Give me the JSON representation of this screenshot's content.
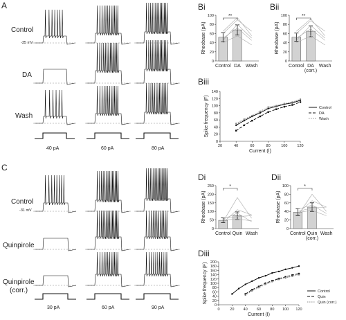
{
  "panels": {
    "A": {
      "label": "A",
      "conditions": [
        "Control",
        "DA",
        "Wash"
      ],
      "voltage": "-35 mV",
      "currents": [
        "40 pA",
        "60 pA",
        "80 pA"
      ]
    },
    "B": {
      "Bi": {
        "label": "Bi",
        "ylabel": "Rheobase (pA)",
        "categories": [
          "Control",
          "DA",
          "Wash"
        ],
        "sig": "**"
      },
      "Bii": {
        "label": "Bii",
        "ylabel": "Rheobase (pA)",
        "categories": [
          "Control",
          "DA\n(corr.)",
          "Wash"
        ],
        "sig": "**"
      },
      "Biii": {
        "label": "Biii",
        "xlabel": "Current (I)",
        "ylabel": "Spike frequency (F)",
        "legend": [
          "Control",
          "DA",
          "Wash"
        ]
      }
    },
    "C": {
      "label": "C",
      "conditions": [
        "Control",
        "Quinpirole",
        "Quinpirole\n(corr.)"
      ],
      "voltage": "-31 mV",
      "currents": [
        "30 pA",
        "60 pA",
        "90 pA"
      ]
    },
    "D": {
      "Di": {
        "label": "Di",
        "ylabel": "Rheobase (pA)",
        "categories": [
          "Control",
          "Quin",
          "Wash"
        ],
        "sig": "*"
      },
      "Dii": {
        "label": "Dii",
        "ylabel": "Rheobase (pA)",
        "categories": [
          "Control",
          "Quin\n(corr.)",
          "Wash"
        ],
        "sig": "*"
      },
      "Diii": {
        "label": "Diii",
        "xlabel": "Current (I)",
        "ylabel": "Spike frequency (F)",
        "legend": [
          "Control",
          "Quin",
          "Quin (corr.)"
        ]
      }
    }
  },
  "chart_data": [
    {
      "id": "Bi",
      "type": "bar",
      "title": "",
      "ylabel": "Rheobase (pA)",
      "xlabel": "",
      "categories": [
        "Control",
        "DA",
        "Wash"
      ],
      "values": [
        52,
        68,
        null
      ],
      "errors": [
        10,
        11,
        null
      ],
      "ylim": [
        0,
        100
      ],
      "yticks": [
        0,
        20,
        40,
        60,
        80,
        100
      ],
      "cells": [
        [
          40,
          55,
          35
        ],
        [
          45,
          80,
          50
        ],
        [
          60,
          90,
          65
        ],
        [
          65,
          95,
          55
        ],
        [
          50,
          72,
          45
        ]
      ]
    },
    {
      "id": "Bii",
      "type": "bar",
      "title": "",
      "ylabel": "Rheobase (pA)",
      "xlabel": "",
      "categories": [
        "Control",
        "DA\n(corr.)",
        "Wash"
      ],
      "values": [
        52,
        65,
        null
      ],
      "errors": [
        9,
        12,
        null
      ],
      "ylim": [
        0,
        100
      ],
      "yticks": [
        0,
        20,
        40,
        60,
        80,
        100
      ],
      "cells": [
        [
          40,
          55,
          35
        ],
        [
          45,
          78,
          50
        ],
        [
          60,
          88,
          65
        ],
        [
          65,
          92,
          55
        ],
        [
          50,
          70,
          45
        ]
      ]
    },
    {
      "id": "Biii",
      "type": "line",
      "title": "",
      "xlabel": "Current (I)",
      "ylabel": "Spike frequency (F)",
      "x": [
        40,
        50,
        60,
        70,
        80,
        90,
        100,
        110,
        120
      ],
      "xlim": [
        20,
        120
      ],
      "xticks": [
        20,
        40,
        60,
        80,
        100,
        120
      ],
      "ylim": [
        0,
        140
      ],
      "yticks": [
        0,
        20,
        40,
        60,
        80,
        100,
        120,
        140
      ],
      "series": [
        {
          "name": "Control",
          "values": [
            45,
            58,
            70,
            80,
            92,
            98,
            104,
            108,
            115
          ],
          "style": "solid"
        },
        {
          "name": "DA",
          "values": [
            30,
            45,
            58,
            70,
            82,
            90,
            97,
            102,
            110
          ],
          "style": "dashed"
        },
        {
          "name": "Wash",
          "values": [
            50,
            62,
            72,
            84,
            96,
            100,
            106,
            110,
            118
          ],
          "style": "dotted"
        }
      ]
    },
    {
      "id": "Di",
      "type": "bar",
      "title": "",
      "ylabel": "Rheobase (pA)",
      "xlabel": "",
      "categories": [
        "Control",
        "Quin",
        "Wash"
      ],
      "values": [
        48,
        75,
        null
      ],
      "errors": [
        14,
        22,
        null
      ],
      "ylim": [
        0,
        250
      ],
      "yticks": [
        0,
        50,
        100,
        150,
        200,
        250
      ],
      "cells": [
        [
          40,
          180,
          60
        ],
        [
          35,
          110,
          80
        ],
        [
          55,
          90,
          40
        ],
        [
          60,
          70,
          75
        ],
        [
          50,
          55,
          45
        ]
      ]
    },
    {
      "id": "Dii",
      "type": "bar",
      "title": "",
      "ylabel": "Rheobase (pA)",
      "xlabel": "",
      "categories": [
        "Control",
        "Quin\n(corr.)",
        "Wash"
      ],
      "values": [
        38,
        50,
        null
      ],
      "errors": [
        8,
        10,
        null
      ],
      "ylim": [
        0,
        100
      ],
      "yticks": [
        0,
        20,
        40,
        60,
        80,
        100
      ],
      "cells": [
        [
          30,
          80,
          40
        ],
        [
          35,
          65,
          50
        ],
        [
          45,
          55,
          35
        ],
        [
          40,
          48,
          50
        ],
        [
          38,
          42,
          30
        ]
      ]
    },
    {
      "id": "Diii",
      "type": "line",
      "title": "",
      "xlabel": "Current (I)",
      "ylabel": "Spike frequency (F)",
      "x": [
        20,
        30,
        40,
        50,
        60,
        70,
        80,
        90,
        100,
        110,
        120
      ],
      "xlim": [
        0,
        120
      ],
      "xticks": [
        0,
        20,
        40,
        60,
        80,
        100,
        120
      ],
      "ylim": [
        0,
        200
      ],
      "yticks": [
        0,
        20,
        40,
        60,
        80,
        100,
        120,
        140,
        160,
        180,
        200
      ],
      "series": [
        {
          "name": "Control",
          "values": [
            50,
            75,
            95,
            110,
            125,
            135,
            148,
            155,
            165,
            172,
            180
          ],
          "style": "solid"
        },
        {
          "name": "Quin",
          "values": [
            null,
            null,
            50,
            70,
            85,
            100,
            112,
            122,
            130,
            138,
            145
          ],
          "style": "dashed"
        },
        {
          "name": "Quin (corr.)",
          "values": [
            null,
            null,
            45,
            65,
            80,
            95,
            108,
            118,
            125,
            133,
            140
          ],
          "style": "dotted"
        }
      ]
    }
  ]
}
